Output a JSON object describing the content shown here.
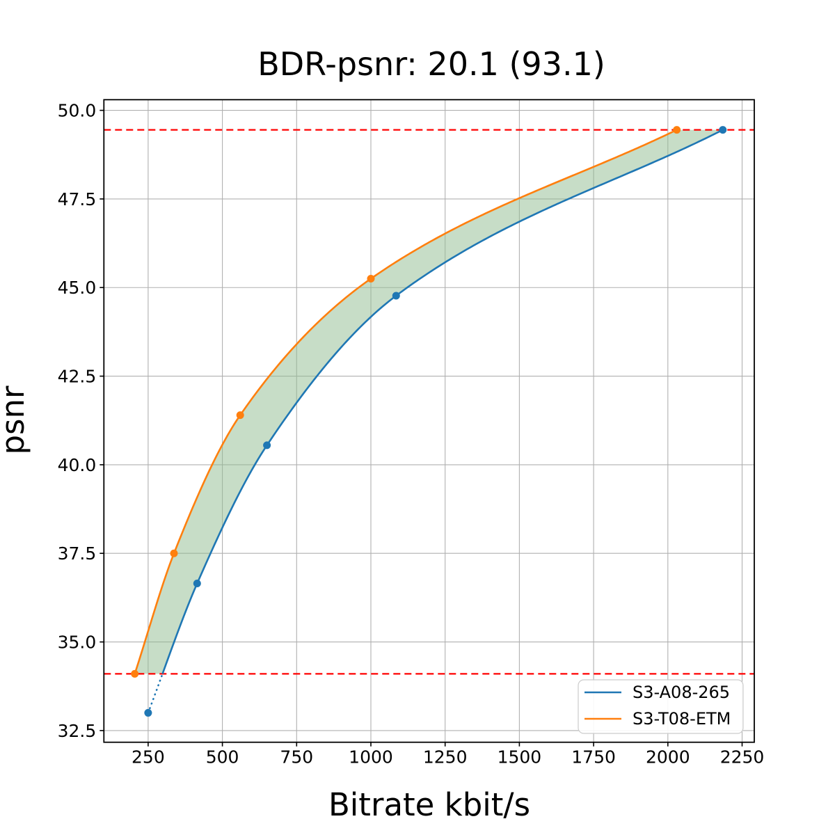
{
  "chart_data": {
    "type": "line",
    "title": "BDR-psnr: 20.1 (93.1)",
    "xlabel": "Bitrate kbit/s",
    "ylabel": "psnr",
    "xlim": [
      101,
      2291
    ],
    "ylim": [
      32.17,
      50.3
    ],
    "x_ticks": [
      250,
      500,
      750,
      1000,
      1250,
      1500,
      1750,
      2000,
      2250
    ],
    "y_ticks": [
      32.5,
      35.0,
      37.5,
      40.0,
      42.5,
      45.0,
      47.5,
      50.0
    ],
    "grid": true,
    "grid_color": "#b0b0b0",
    "legend_loc": "lower right",
    "series": [
      {
        "name": "S3-A08-265",
        "color": "#1f77b4",
        "marker": "circle",
        "points": [
          [
            250,
            33.0
          ],
          [
            415,
            36.65
          ],
          [
            650,
            40.55
          ],
          [
            1085,
            44.77
          ],
          [
            2185,
            49.45
          ]
        ],
        "note": "segment below overlap band drawn dotted"
      },
      {
        "name": "S3-T08-ETM",
        "color": "#ff7f0e",
        "marker": "circle",
        "points": [
          [
            205,
            34.1
          ],
          [
            337,
            37.5
          ],
          [
            560,
            41.4
          ],
          [
            1000,
            45.25
          ],
          [
            2030,
            49.45
          ]
        ]
      }
    ],
    "overlap_band": {
      "psnr_low": 34.1,
      "psnr_high": 49.45,
      "fill_color": "rgba(143,188,143,0.5)"
    },
    "reference_lines": [
      {
        "axis": "y",
        "value": 34.1,
        "color": "#ff0000",
        "style": "dashed"
      },
      {
        "axis": "y",
        "value": 49.45,
        "color": "#ff0000",
        "style": "dashed"
      }
    ]
  }
}
